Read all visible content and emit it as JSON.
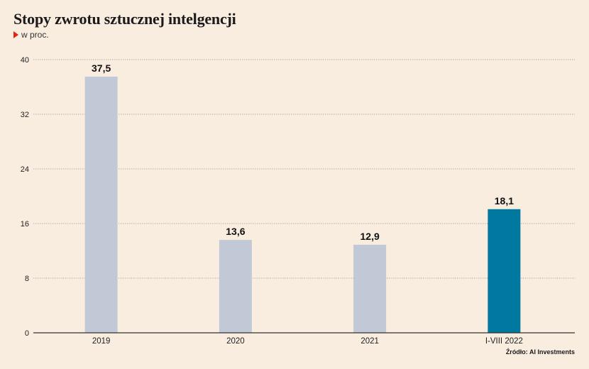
{
  "header": {
    "title": "Stopy zwrotu sztucznej intelgencji",
    "subtitle": "w proc.",
    "subtitle_marker_color": "#e2231a"
  },
  "footer": {
    "source": "Źródło: AI Investments"
  },
  "chart_data": {
    "type": "bar",
    "categories": [
      "2019",
      "2020",
      "2021",
      "I-VIII 2022"
    ],
    "values": [
      37.5,
      13.6,
      12.9,
      18.1
    ],
    "value_labels": [
      "37,5",
      "13,6",
      "12,9",
      "18,1"
    ],
    "yticks": [
      0,
      8,
      16,
      24,
      32,
      40
    ],
    "ytick_labels": [
      "0",
      "8",
      "16",
      "24",
      "32",
      "40"
    ],
    "ylim": [
      0,
      40
    ],
    "grid": true,
    "colors": {
      "default_bar": "#c1c8d6",
      "highlight_bar": "#0078a0",
      "grid": "#9a9a9a",
      "axis": "#333333"
    },
    "highlight_index": 3,
    "title": "Stopy zwrotu sztucznej intelgencji",
    "xlabel": "",
    "ylabel": ""
  }
}
